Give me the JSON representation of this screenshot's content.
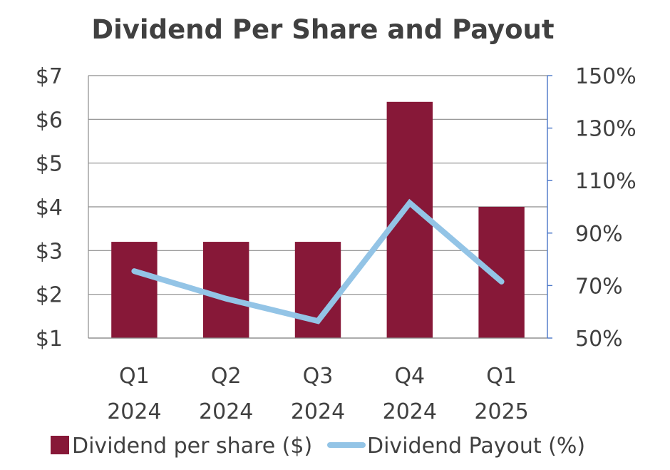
{
  "chart_data": {
    "type": "bar",
    "title": "Dividend Per Share and Payout",
    "categories": [
      [
        "Q1",
        "2024"
      ],
      [
        "Q2",
        "2024"
      ],
      [
        "Q3",
        "2024"
      ],
      [
        "Q4",
        "2024"
      ],
      [
        "Q1",
        "2025"
      ]
    ],
    "series": [
      {
        "name": "Dividend per share ($)",
        "type": "bar",
        "axis": "left",
        "color": "#871838",
        "values": [
          3.2,
          3.2,
          3.2,
          6.4,
          4.0
        ]
      },
      {
        "name": "Dividend Payout (%)",
        "type": "line",
        "axis": "right",
        "color": "#93C4E6",
        "values": [
          75.5,
          65,
          56.5,
          101.5,
          71.5
        ]
      }
    ],
    "left_axis": {
      "min": 1,
      "max": 7,
      "ticks": [
        "$1",
        "$2",
        "$3",
        "$4",
        "$5",
        "$6",
        "$7"
      ]
    },
    "right_axis": {
      "min": 50,
      "max": 150,
      "ticks": [
        "50%",
        "70%",
        "90%",
        "110%",
        "130%",
        "150%"
      ]
    },
    "grid": true,
    "legend_position": "bottom"
  }
}
